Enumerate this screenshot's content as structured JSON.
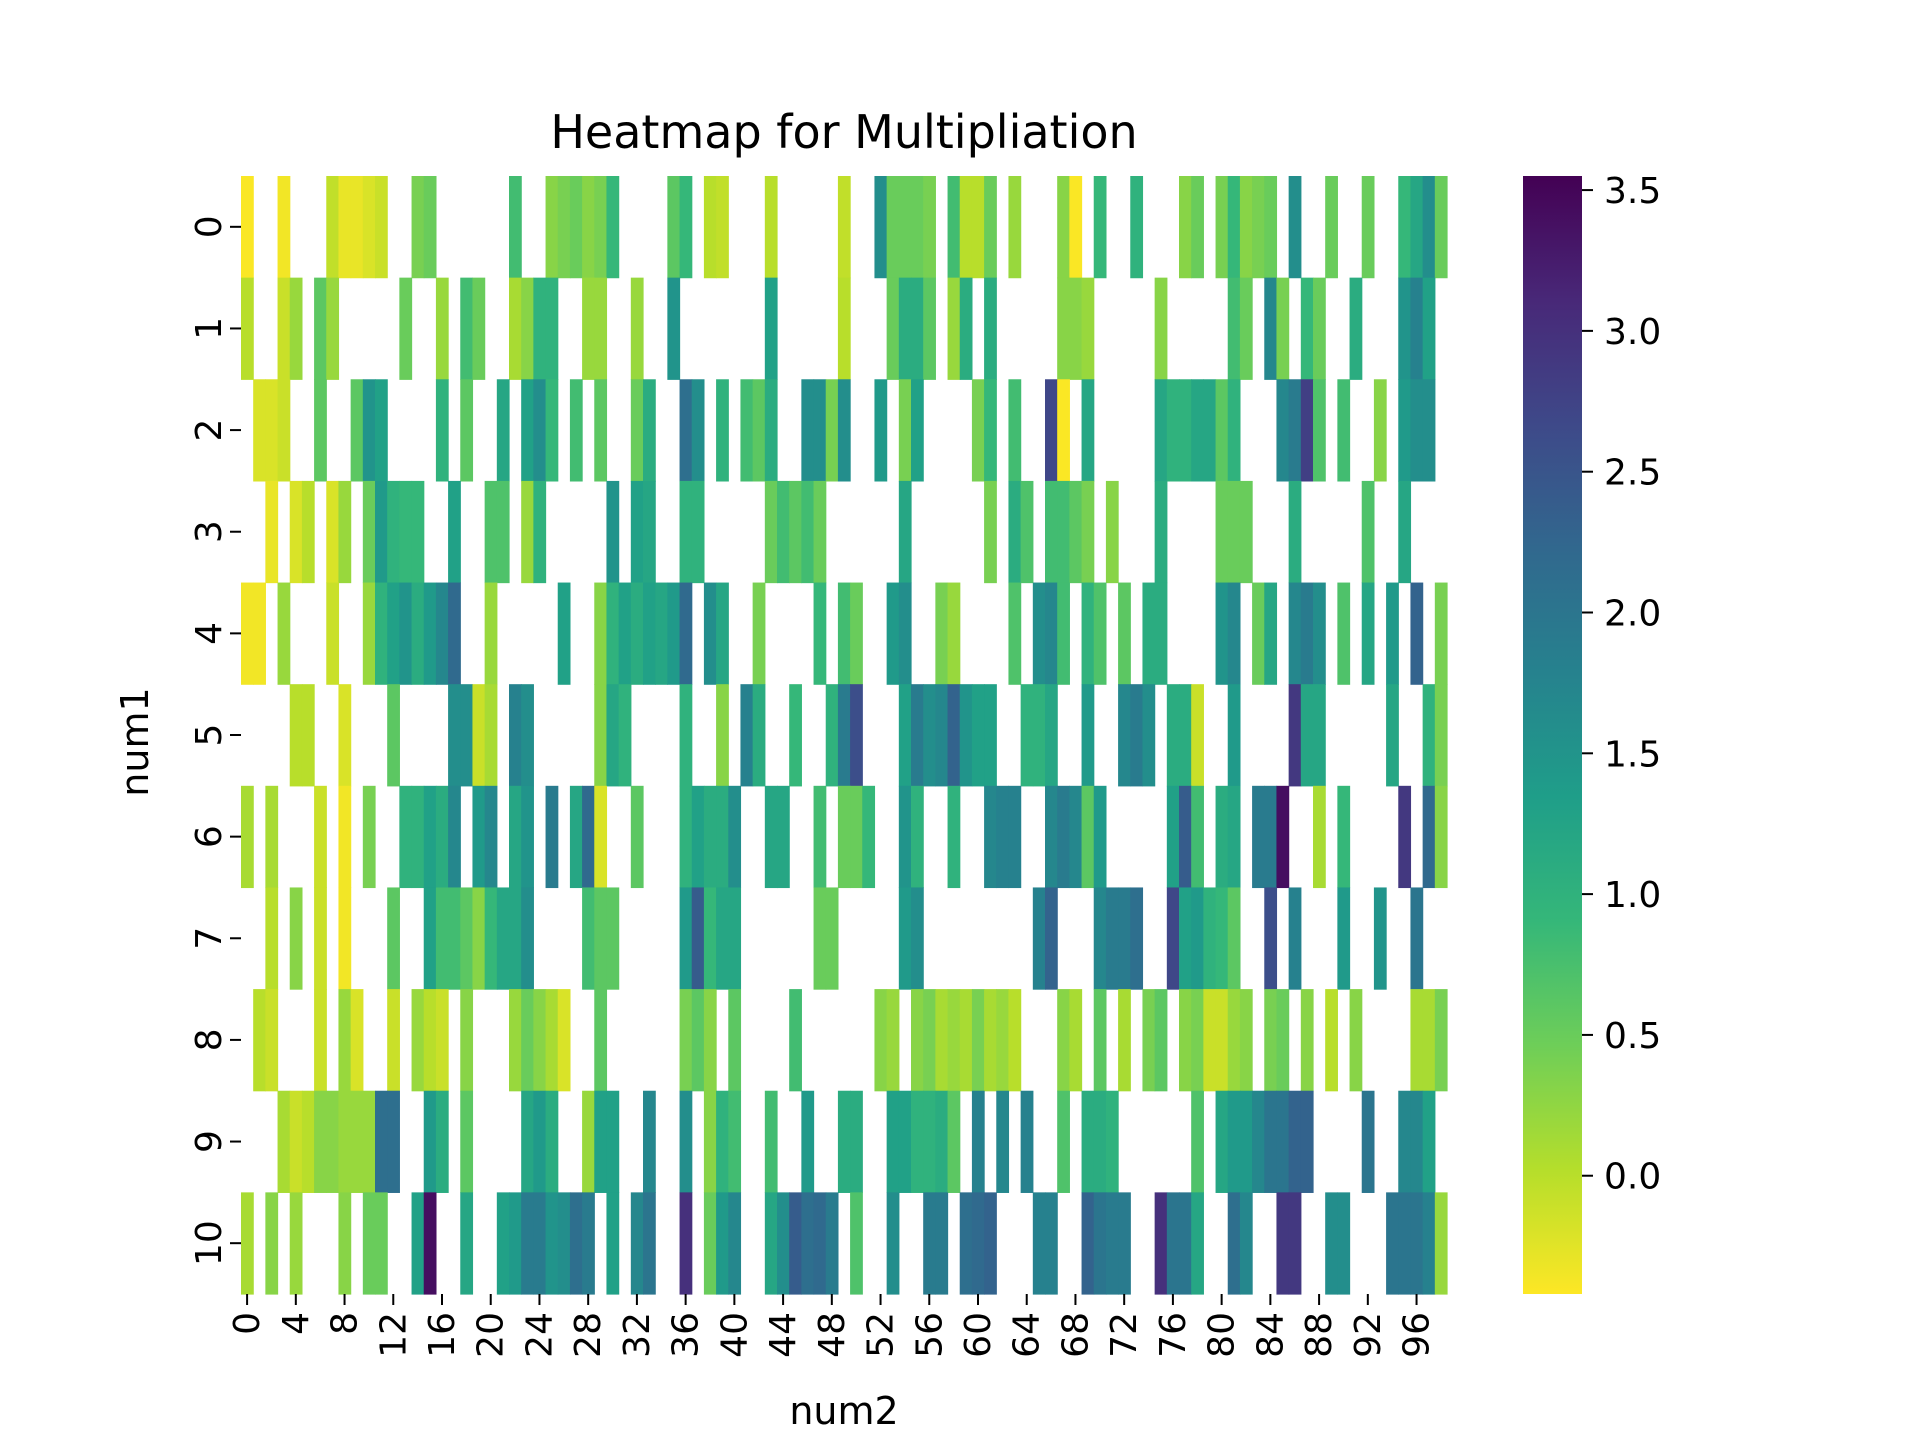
{
  "chart_data": {
    "type": "heatmap",
    "title": "Heatmap for Multipliation",
    "xlabel": "num2",
    "ylabel": "num1",
    "rows": [
      0,
      1,
      2,
      3,
      4,
      5,
      6,
      7,
      8,
      9,
      10
    ],
    "columns": [
      0,
      1,
      2,
      3,
      4,
      5,
      6,
      7,
      8,
      9,
      10,
      11,
      12,
      13,
      14,
      15,
      16,
      17,
      18,
      19,
      20,
      21,
      22,
      23,
      24,
      25,
      26,
      27,
      28,
      29,
      30,
      31,
      32,
      33,
      34,
      35,
      36,
      37,
      38,
      39,
      40,
      41,
      42,
      43,
      44,
      45,
      46,
      47,
      48,
      49,
      50,
      51,
      52,
      53,
      54,
      55,
      56,
      57,
      58,
      59,
      60,
      61,
      62,
      63,
      64,
      65,
      66,
      67,
      68,
      69,
      70,
      71,
      72,
      73,
      74,
      75,
      76,
      77,
      78,
      79,
      80,
      81,
      82,
      83,
      84,
      85,
      86,
      87,
      88,
      89,
      90,
      91,
      92,
      93,
      94,
      95,
      96,
      97,
      98
    ],
    "x_tick_labels": [
      0,
      4,
      8,
      12,
      16,
      20,
      24,
      28,
      32,
      36,
      40,
      44,
      48,
      52,
      56,
      60,
      64,
      68,
      72,
      76,
      80,
      84,
      88,
      92,
      96
    ],
    "y_tick_labels": [
      0,
      1,
      2,
      3,
      4,
      5,
      6,
      7,
      8,
      9,
      10
    ],
    "values": [
      [
        -0.4,
        null,
        null,
        -0.35,
        null,
        null,
        null,
        -0.05,
        -0.3,
        -0.3,
        -0.2,
        -0.1,
        null,
        null,
        0.4,
        0.5,
        null,
        null,
        null,
        null,
        null,
        null,
        0.8,
        null,
        null,
        0.3,
        0.4,
        0.5,
        0.3,
        0.4,
        0.9,
        null,
        null,
        null,
        null,
        0.6,
        0.9,
        null,
        0.0,
        -0.05,
        null,
        null,
        null,
        0.0,
        null,
        null,
        null,
        null,
        null,
        -0.05,
        null,
        null,
        1.6,
        0.5,
        0.5,
        0.5,
        0.4,
        null,
        0.8,
        0.0,
        0.0,
        0.5,
        null,
        0.2,
        null,
        null,
        null,
        0.3,
        -0.4,
        null,
        0.9,
        null,
        null,
        1.0,
        null,
        null,
        null,
        0.3,
        0.5,
        null,
        0.4,
        0.9,
        0.3,
        0.4,
        0.5,
        null,
        1.6,
        null,
        null,
        0.5,
        null,
        null,
        0.5,
        null,
        null,
        0.9,
        1.2,
        1.6,
        0.5
      ],
      [
        0.0,
        null,
        null,
        -0.1,
        0.2,
        null,
        0.6,
        0.2,
        null,
        null,
        null,
        null,
        null,
        0.5,
        null,
        null,
        0.2,
        null,
        0.8,
        0.5,
        null,
        null,
        0.1,
        0.3,
        1.0,
        1.0,
        null,
        null,
        0.2,
        0.2,
        null,
        null,
        0.2,
        null,
        null,
        1.5,
        null,
        null,
        null,
        null,
        null,
        null,
        null,
        1.3,
        null,
        null,
        null,
        null,
        null,
        0.0,
        null,
        null,
        null,
        0.5,
        1.1,
        1.1,
        0.6,
        null,
        0.2,
        1.1,
        null,
        1.1,
        null,
        null,
        null,
        null,
        null,
        0.3,
        0.3,
        0.2,
        null,
        null,
        null,
        null,
        null,
        0.3,
        null,
        null,
        null,
        null,
        null,
        0.8,
        0.5,
        null,
        1.7,
        0.4,
        null,
        0.9,
        0.5,
        null,
        null,
        1.1,
        null,
        null,
        null,
        1.5,
        1.8,
        1.3,
        null
      ],
      [
        null,
        -0.2,
        -0.2,
        -0.1,
        null,
        null,
        0.6,
        null,
        null,
        0.6,
        1.5,
        1.3,
        null,
        null,
        null,
        null,
        1.0,
        null,
        0.6,
        null,
        null,
        1.2,
        null,
        1.3,
        1.6,
        0.9,
        null,
        0.8,
        null,
        0.6,
        null,
        null,
        0.5,
        1.1,
        null,
        null,
        2.1,
        1.6,
        null,
        1.0,
        null,
        0.8,
        0.6,
        1.1,
        null,
        null,
        1.6,
        1.6,
        0.4,
        1.6,
        null,
        null,
        1.4,
        null,
        0.4,
        1.3,
        null,
        null,
        null,
        null,
        0.4,
        0.9,
        null,
        0.8,
        null,
        null,
        2.7,
        -0.4,
        null,
        1.2,
        null,
        null,
        null,
        null,
        null,
        1.2,
        1.0,
        1.0,
        1.2,
        1.2,
        0.6,
        1.0,
        null,
        null,
        null,
        1.7,
        1.9,
        2.8,
        0.7,
        null,
        0.8,
        null,
        null,
        0.3,
        null,
        1.4,
        1.6,
        1.6,
        null
      ],
      [
        null,
        null,
        -0.3,
        null,
        -0.2,
        0.0,
        null,
        -0.2,
        0.2,
        null,
        0.5,
        1.4,
        1.0,
        0.9,
        0.9,
        null,
        null,
        1.3,
        null,
        null,
        0.7,
        0.7,
        null,
        0.2,
        1.0,
        null,
        null,
        null,
        null,
        null,
        1.5,
        null,
        1.3,
        1.2,
        null,
        null,
        1.0,
        1.0,
        null,
        null,
        null,
        null,
        null,
        0.5,
        0.8,
        0.6,
        0.8,
        0.5,
        null,
        null,
        null,
        null,
        null,
        null,
        1.2,
        null,
        null,
        null,
        null,
        null,
        null,
        0.4,
        null,
        1.1,
        0.7,
        null,
        0.8,
        0.8,
        0.6,
        0.4,
        null,
        0.3,
        null,
        null,
        null,
        1.1,
        null,
        null,
        null,
        null,
        0.5,
        0.5,
        0.5,
        null,
        null,
        null,
        1.1,
        null,
        null,
        null,
        null,
        null,
        0.7,
        null,
        null,
        1.2,
        null,
        null,
        null
      ],
      [
        -0.35,
        -0.35,
        null,
        0.2,
        null,
        null,
        null,
        -0.1,
        null,
        null,
        0.2,
        1.0,
        1.3,
        1.5,
        1.1,
        1.4,
        1.7,
        2.2,
        null,
        null,
        0.2,
        null,
        null,
        null,
        null,
        null,
        1.3,
        null,
        null,
        0.3,
        1.0,
        1.3,
        1.1,
        1.3,
        1.2,
        1.4,
        2.2,
        null,
        1.6,
        1.2,
        null,
        null,
        0.4,
        null,
        null,
        null,
        null,
        0.9,
        null,
        0.8,
        0.5,
        null,
        null,
        1.4,
        1.6,
        null,
        null,
        0.4,
        0.2,
        null,
        null,
        null,
        null,
        0.7,
        null,
        1.6,
        1.7,
        0.8,
        null,
        1.0,
        0.7,
        null,
        0.6,
        null,
        1.1,
        1.1,
        null,
        null,
        null,
        null,
        1.5,
        1.7,
        null,
        0.5,
        1.2,
        null,
        1.7,
        1.9,
        1.6,
        null,
        0.7,
        null,
        1.2,
        null,
        1.4,
        null,
        2.3,
        null,
        0.4
      ],
      [
        null,
        null,
        null,
        null,
        0.0,
        0.0,
        null,
        null,
        -0.2,
        null,
        null,
        null,
        0.6,
        null,
        null,
        null,
        null,
        1.6,
        1.6,
        -0.1,
        0.1,
        null,
        1.8,
        1.6,
        null,
        null,
        null,
        null,
        null,
        0.3,
        1.2,
        1.0,
        null,
        null,
        null,
        null,
        1.0,
        null,
        null,
        0.3,
        null,
        1.8,
        1.1,
        null,
        null,
        0.9,
        null,
        null,
        1.0,
        1.9,
        2.6,
        null,
        null,
        null,
        1.3,
        1.9,
        1.6,
        1.7,
        2.3,
        1.5,
        1.3,
        1.3,
        null,
        null,
        1.0,
        1.0,
        1.2,
        null,
        null,
        1.4,
        null,
        null,
        1.7,
        1.9,
        1.6,
        null,
        1.1,
        1.1,
        -0.1,
        null,
        null,
        1.4,
        null,
        null,
        null,
        null,
        2.9,
        1.2,
        1.2,
        null,
        null,
        null,
        null,
        null,
        1.2,
        null,
        null,
        1.0,
        0.4
      ],
      [
        0.1,
        null,
        0.1,
        null,
        null,
        null,
        -0.1,
        null,
        -0.35,
        null,
        0.4,
        null,
        null,
        1.0,
        1.0,
        1.3,
        1.1,
        1.7,
        null,
        1.4,
        1.7,
        null,
        1.2,
        1.5,
        null,
        1.9,
        null,
        1.2,
        2.2,
        -0.2,
        null,
        null,
        0.6,
        null,
        null,
        null,
        1.0,
        1.3,
        1.1,
        1.1,
        1.6,
        null,
        null,
        1.2,
        1.2,
        null,
        null,
        0.8,
        null,
        0.5,
        0.5,
        0.9,
        null,
        null,
        1.5,
        1.0,
        null,
        null,
        1.0,
        null,
        null,
        1.7,
        1.8,
        1.8,
        null,
        null,
        1.7,
        1.9,
        1.7,
        0.6,
        1.4,
        null,
        null,
        null,
        null,
        null,
        1.3,
        2.4,
        0.8,
        null,
        1.1,
        1.2,
        null,
        1.9,
        1.9,
        3.4,
        null,
        null,
        0.1,
        null,
        0.9,
        null,
        null,
        null,
        null,
        2.9,
        null,
        2.2,
        0.3
      ],
      [
        null,
        null,
        0.0,
        null,
        0.3,
        null,
        -0.1,
        null,
        -0.35,
        null,
        null,
        null,
        0.6,
        null,
        null,
        1.3,
        0.8,
        0.8,
        0.6,
        0.3,
        0.9,
        1.2,
        1.2,
        1.6,
        null,
        null,
        null,
        null,
        0.8,
        0.6,
        0.6,
        null,
        null,
        null,
        null,
        null,
        1.4,
        2.4,
        0.9,
        1.2,
        1.2,
        null,
        null,
        null,
        null,
        null,
        null,
        0.5,
        0.5,
        null,
        null,
        null,
        null,
        null,
        1.4,
        1.6,
        null,
        null,
        null,
        null,
        null,
        null,
        null,
        null,
        null,
        1.8,
        2.3,
        null,
        null,
        null,
        1.7,
        1.9,
        1.9,
        2.1,
        null,
        null,
        2.7,
        1.3,
        1.4,
        1.0,
        0.9,
        0.6,
        null,
        null,
        2.6,
        null,
        1.8,
        null,
        null,
        null,
        1.4,
        null,
        null,
        1.5,
        null,
        null,
        2.0,
        null,
        null
      ],
      [
        null,
        0.0,
        -0.1,
        null,
        null,
        null,
        -0.1,
        null,
        0.2,
        -0.2,
        null,
        null,
        -0.1,
        null,
        0.2,
        0.0,
        -0.1,
        null,
        0.3,
        null,
        null,
        null,
        0.2,
        0.5,
        0.3,
        0.1,
        -0.2,
        null,
        null,
        0.6,
        null,
        null,
        null,
        null,
        null,
        null,
        0.4,
        0.6,
        0.3,
        null,
        0.6,
        null,
        null,
        null,
        null,
        0.8,
        null,
        null,
        null,
        null,
        null,
        null,
        0.3,
        0.2,
        null,
        0.3,
        0.4,
        0.1,
        0.2,
        0.1,
        0.4,
        0.1,
        0.2,
        0.0,
        null,
        null,
        null,
        0.3,
        0.1,
        null,
        0.6,
        null,
        0.1,
        null,
        0.4,
        0.6,
        null,
        0.3,
        0.4,
        -0.1,
        -0.1,
        0.2,
        0.3,
        null,
        0.4,
        0.5,
        null,
        0.3,
        null,
        0.0,
        null,
        0.3,
        null,
        null,
        null,
        null,
        0.1,
        0.1,
        0.4
      ],
      [
        null,
        null,
        null,
        0.1,
        -0.1,
        0.0,
        0.3,
        0.3,
        0.2,
        0.2,
        0.2,
        2.1,
        2.1,
        null,
        null,
        1.4,
        1.1,
        null,
        0.6,
        null,
        null,
        null,
        null,
        1.2,
        1.4,
        1.1,
        null,
        null,
        0.2,
        1.3,
        1.3,
        null,
        null,
        1.7,
        null,
        null,
        1.6,
        null,
        0.3,
        1.0,
        0.8,
        null,
        null,
        0.8,
        null,
        null,
        1.4,
        null,
        null,
        1.1,
        1.1,
        null,
        null,
        1.3,
        1.3,
        1.0,
        1.0,
        1.1,
        0.6,
        null,
        1.8,
        null,
        1.7,
        null,
        1.8,
        null,
        null,
        0.7,
        null,
        1.1,
        1.1,
        1.0,
        null,
        null,
        null,
        null,
        null,
        null,
        0.7,
        null,
        1.2,
        1.4,
        1.4,
        1.7,
        2.0,
        2.0,
        2.3,
        2.3,
        null,
        null,
        null,
        null,
        2.0,
        null,
        null,
        1.7,
        1.7,
        1.3,
        null
      ],
      [
        0.1,
        null,
        0.3,
        null,
        0.2,
        null,
        null,
        null,
        0.3,
        null,
        0.5,
        0.5,
        null,
        null,
        1.3,
        3.4,
        null,
        null,
        1.2,
        null,
        null,
        1.3,
        1.4,
        1.9,
        1.9,
        1.5,
        1.6,
        2.1,
        1.9,
        null,
        1.3,
        null,
        1.7,
        2.0,
        null,
        null,
        3.0,
        null,
        0.5,
        1.4,
        1.7,
        null,
        null,
        1.2,
        1.6,
        2.4,
        2.1,
        2.2,
        1.9,
        null,
        0.7,
        null,
        null,
        1.6,
        null,
        null,
        1.9,
        1.9,
        null,
        2.1,
        2.2,
        2.3,
        null,
        null,
        null,
        1.8,
        1.8,
        null,
        null,
        2.3,
        2.0,
        1.9,
        1.9,
        null,
        null,
        3.0,
        2.0,
        2.0,
        1.2,
        null,
        null,
        2.1,
        1.7,
        null,
        null,
        2.9,
        2.9,
        null,
        null,
        1.6,
        1.6,
        null,
        null,
        null,
        2.0,
        2.0,
        2.0,
        1.8,
        0.2
      ]
    ],
    "colorbar": {
      "vmin": -0.42,
      "vmax": 3.55,
      "ticks": [
        0.0,
        0.5,
        1.0,
        1.5,
        2.0,
        2.5,
        3.0,
        3.5
      ],
      "tick_labels": [
        "0.0",
        "0.5",
        "1.0",
        "1.5",
        "2.0",
        "2.5",
        "3.0",
        "3.5"
      ],
      "colormap": "viridis_r",
      "stops": [
        "#fde725",
        "#b5de2b",
        "#6ece58",
        "#35b779",
        "#1f9e89",
        "#26828e",
        "#31688e",
        "#3e4989",
        "#482878",
        "#440154"
      ]
    },
    "missing_color": "#ffffff",
    "grid": false,
    "legend": "colorbar-right"
  }
}
